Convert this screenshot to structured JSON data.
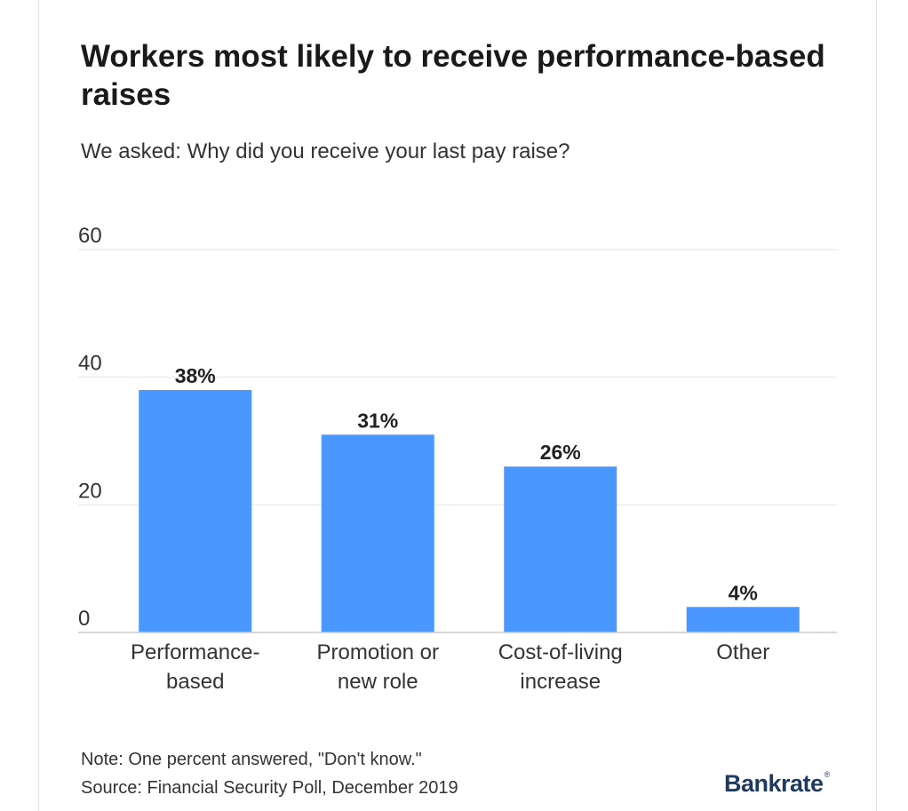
{
  "header": {
    "title": "Workers most likely to receive performance-based raises",
    "subtitle": "We asked: Why did you receive your last pay raise?"
  },
  "chart_data": {
    "type": "bar",
    "categories": [
      [
        "Performance-",
        "based"
      ],
      [
        "Promotion or",
        "new role"
      ],
      [
        "Cost-of-living",
        "increase"
      ],
      [
        "Other"
      ]
    ],
    "values": [
      38,
      31,
      26,
      4
    ],
    "value_labels": [
      "38%",
      "31%",
      "26%",
      "4%"
    ],
    "y_ticks": [
      0,
      20,
      40,
      60
    ],
    "ylim": [
      0,
      60
    ],
    "grid": true,
    "bar_color": "#4a98ff",
    "grid_color": "#e6e6e6",
    "axis_color": "#cccccc"
  },
  "footer": {
    "note": "Note: One percent answered, \"Don't know.\"",
    "source": "Source: Financial Security Poll, December 2019",
    "logo": "Bankrate",
    "logo_mark": "®"
  }
}
